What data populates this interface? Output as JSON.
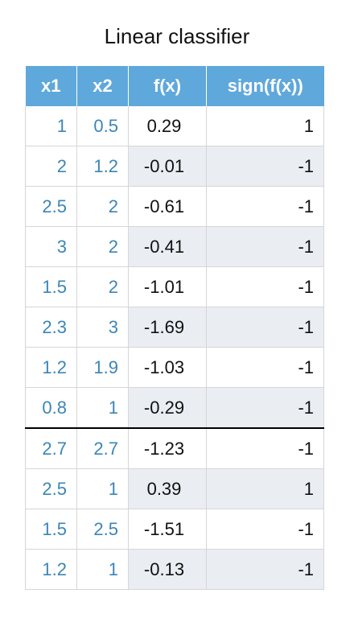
{
  "title": "Linear classifier",
  "columns": [
    "x1",
    "x2",
    "f(x)",
    "sign(f(x))"
  ],
  "rows": [
    {
      "x1": "1",
      "x2": "0.5",
      "fx": "0.29",
      "sign": "1"
    },
    {
      "x1": "2",
      "x2": "1.2",
      "fx": "-0.01",
      "sign": "-1"
    },
    {
      "x1": "2.5",
      "x2": "2",
      "fx": "-0.61",
      "sign": "-1"
    },
    {
      "x1": "3",
      "x2": "2",
      "fx": "-0.41",
      "sign": "-1"
    },
    {
      "x1": "1.5",
      "x2": "2",
      "fx": "-1.01",
      "sign": "-1"
    },
    {
      "x1": "2.3",
      "x2": "3",
      "fx": "-1.69",
      "sign": "-1"
    },
    {
      "x1": "1.2",
      "x2": "1.9",
      "fx": "-1.03",
      "sign": "-1"
    },
    {
      "x1": "0.8",
      "x2": "1",
      "fx": "-0.29",
      "sign": "-1"
    },
    {
      "x1": "2.7",
      "x2": "2.7",
      "fx": "-1.23",
      "sign": "-1"
    },
    {
      "x1": "2.5",
      "x2": "1",
      "fx": "0.39",
      "sign": "1"
    },
    {
      "x1": "1.5",
      "x2": "2.5",
      "fx": "-1.51",
      "sign": "-1"
    },
    {
      "x1": "1.2",
      "x2": "1",
      "fx": "-0.13",
      "sign": "-1"
    }
  ],
  "colors": {
    "header_bg": "#5fa8db",
    "input_text": "#3b86b5",
    "shaded_bg": "#eaeef2"
  }
}
